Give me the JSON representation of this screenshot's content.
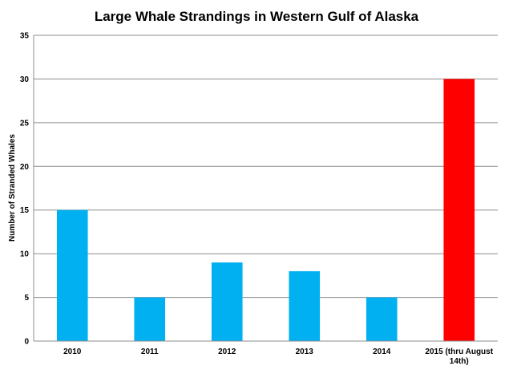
{
  "chart_data": {
    "type": "bar",
    "title": "Large Whale Strandings in Western Gulf of Alaska",
    "xlabel": "",
    "ylabel": "Number of Stranded Whales",
    "ylim": [
      0,
      35
    ],
    "yticks": [
      0,
      5,
      10,
      15,
      20,
      25,
      30,
      35
    ],
    "grid": true,
    "legend": "none",
    "categories": [
      [
        "2010"
      ],
      [
        "2011"
      ],
      [
        "2012"
      ],
      [
        "2013"
      ],
      [
        "2014"
      ],
      [
        "2015 (thru August",
        "14th)"
      ]
    ],
    "values": [
      15,
      5,
      9,
      8,
      5,
      30
    ],
    "colors": [
      "#00B0F0",
      "#00B0F0",
      "#00B0F0",
      "#00B0F0",
      "#00B0F0",
      "#FF0000"
    ]
  }
}
